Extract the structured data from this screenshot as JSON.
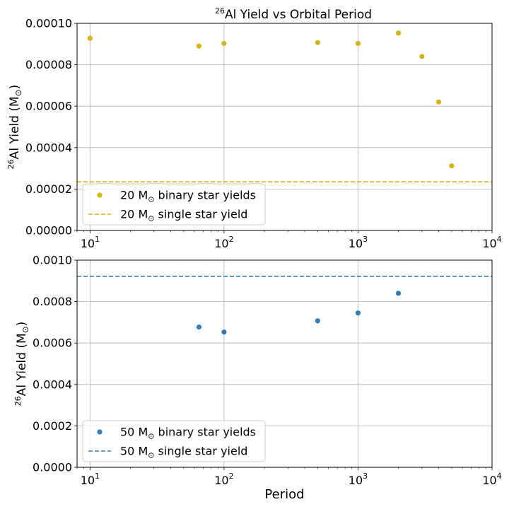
{
  "title": {
    "sup": "26",
    "text": "Al Yield vs Orbital Period"
  },
  "colors": {
    "series_20": "#d4b416",
    "series_50": "#2f7dbb",
    "grid": "#b0b0b0"
  },
  "chart_data": [
    {
      "type": "scatter",
      "x_scale": "log",
      "xlim": [
        8,
        10000
      ],
      "ylim": [
        0,
        0.0001
      ],
      "x_ticks": [
        10,
        100,
        1000,
        10000
      ],
      "x_tick_labels": [
        {
          "base": "10",
          "exp": "1"
        },
        {
          "base": "10",
          "exp": "2"
        },
        {
          "base": "10",
          "exp": "3"
        },
        {
          "base": "10",
          "exp": "4"
        }
      ],
      "y_ticks": [
        0,
        2e-05,
        4e-05,
        6e-05,
        8e-05,
        0.0001
      ],
      "y_tick_labels": [
        "0.00000",
        "0.00002",
        "0.00004",
        "0.00006",
        "0.00008",
        "0.00010"
      ],
      "grid": true,
      "ylabel": {
        "sup": "26",
        "main": "Al Yield (M",
        "sub": "⊙",
        "end": ")"
      },
      "xlabel": "",
      "legend_position": "lower-left",
      "series": [
        {
          "name": {
            "prefix": "20 M",
            "sub": "⊙",
            "suffix": " binary star yields"
          },
          "color": "#d4b416",
          "x": [
            10,
            65,
            100,
            500,
            1000,
            2000,
            3000,
            4000,
            5000
          ],
          "y": [
            9.28e-05,
            8.9e-05,
            9.03e-05,
            9.07e-05,
            9.03e-05,
            9.53e-05,
            8.4e-05,
            6.2e-05,
            3.12e-05
          ]
        }
      ],
      "reference_line": {
        "name": {
          "prefix": "20 M",
          "sub": "⊙",
          "suffix": " single star yield"
        },
        "color": "#d4b416",
        "y": 2.35e-05
      }
    },
    {
      "type": "scatter",
      "x_scale": "log",
      "xlim": [
        8,
        10000
      ],
      "ylim": [
        0,
        0.001
      ],
      "x_ticks": [
        10,
        100,
        1000,
        10000
      ],
      "x_tick_labels": [
        {
          "base": "10",
          "exp": "1"
        },
        {
          "base": "10",
          "exp": "2"
        },
        {
          "base": "10",
          "exp": "3"
        },
        {
          "base": "10",
          "exp": "4"
        }
      ],
      "y_ticks": [
        0,
        0.0002,
        0.0004,
        0.0006,
        0.0008,
        0.001
      ],
      "y_tick_labels": [
        "0.0000",
        "0.0002",
        "0.0004",
        "0.0006",
        "0.0008",
        "0.0010"
      ],
      "grid": true,
      "ylabel": {
        "sup": "26",
        "main": "Al Yield (M",
        "sub": "⊙",
        "end": ")"
      },
      "xlabel": "Period",
      "legend_position": "lower-left",
      "series": [
        {
          "name": {
            "prefix": "50 M",
            "sub": "⊙",
            "suffix": " binary star yields"
          },
          "color": "#2f7dbb",
          "x": [
            65,
            100,
            500,
            1000,
            2000
          ],
          "y": [
            0.000677,
            0.000653,
            0.000707,
            0.000745,
            0.00084
          ]
        }
      ],
      "reference_line": {
        "name": {
          "prefix": "50 M",
          "sub": "⊙",
          "suffix": " single star yield"
        },
        "color": "#2f7dbb",
        "y": 0.000922
      }
    }
  ]
}
